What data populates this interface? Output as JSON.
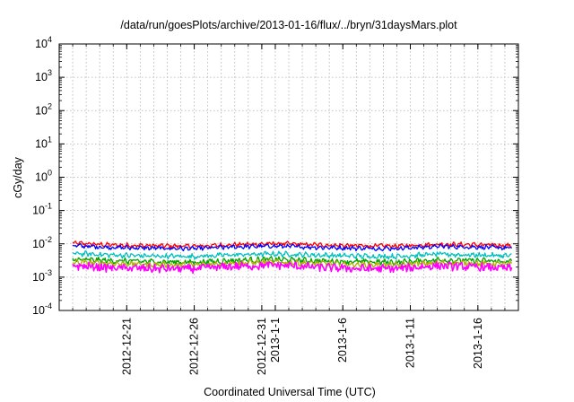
{
  "chart_data": {
    "type": "line",
    "title": "/data/run/goesPlots/archive/2013-01-16/flux/../bryn/31daysMars.plot",
    "xlabel": "Coordinated Universal Time (UTC)",
    "ylabel": "cGy/day",
    "yscale": "log",
    "ylim": [
      0.0001,
      10000
    ],
    "xlim": [
      "2012-12-16",
      "2013-01-19"
    ],
    "grid": true,
    "y_ticks": [
      {
        "base": "10",
        "exp": "-4",
        "value": 0.0001
      },
      {
        "base": "10",
        "exp": "-3",
        "value": 0.001
      },
      {
        "base": "10",
        "exp": "-2",
        "value": 0.01
      },
      {
        "base": "10",
        "exp": "-1",
        "value": 0.1
      },
      {
        "base": "10",
        "exp": "0",
        "value": 1
      },
      {
        "base": "10",
        "exp": "1",
        "value": 10
      },
      {
        "base": "10",
        "exp": "2",
        "value": 100
      },
      {
        "base": "10",
        "exp": "3",
        "value": 1000
      },
      {
        "base": "10",
        "exp": "4",
        "value": 10000
      }
    ],
    "x_ticks": [
      {
        "label": "2012-12-21",
        "date": "2012-12-21"
      },
      {
        "label": "2012-12-26",
        "date": "2012-12-26"
      },
      {
        "label": "2012-12-31",
        "date": "2012-12-31"
      },
      {
        "label": "2013-1-1",
        "date": "2013-01-01"
      },
      {
        "label": "2013-1-6",
        "date": "2013-01-06"
      },
      {
        "label": "2013-1-11",
        "date": "2013-01-11"
      },
      {
        "label": "2013-1-16",
        "date": "2013-01-16"
      }
    ],
    "series": [
      {
        "color": "#ff0000",
        "x": [
          "2012-12-17",
          "2012-12-20",
          "2012-12-23",
          "2012-12-26",
          "2012-12-29",
          "2013-01-01",
          "2013-01-04",
          "2013-01-07",
          "2013-01-10",
          "2013-01-13",
          "2013-01-16",
          "2013-01-19"
        ],
        "values": [
          0.0105,
          0.0092,
          0.0088,
          0.0085,
          0.0095,
          0.0102,
          0.0094,
          0.0088,
          0.0086,
          0.0098,
          0.0094,
          0.0088
        ]
      },
      {
        "color": "#0000ff",
        "x": [
          "2012-12-17",
          "2012-12-20",
          "2012-12-23",
          "2012-12-26",
          "2012-12-29",
          "2013-01-01",
          "2013-01-04",
          "2013-01-07",
          "2013-01-10",
          "2013-01-13",
          "2013-01-16",
          "2013-01-19"
        ],
        "values": [
          0.0088,
          0.0078,
          0.0074,
          0.0072,
          0.0081,
          0.0086,
          0.0079,
          0.0074,
          0.0073,
          0.0084,
          0.008,
          0.0074
        ]
      },
      {
        "color": "#00bfbf",
        "x": [
          "2012-12-17",
          "2012-12-20",
          "2012-12-23",
          "2012-12-26",
          "2012-12-29",
          "2013-01-01",
          "2013-01-04",
          "2013-01-07",
          "2013-01-10",
          "2013-01-13",
          "2013-01-16",
          "2013-01-19"
        ],
        "values": [
          0.0052,
          0.0046,
          0.0043,
          0.0042,
          0.0047,
          0.005,
          0.0046,
          0.0043,
          0.0042,
          0.0049,
          0.0046,
          0.0043
        ]
      },
      {
        "color": "#00a000",
        "x": [
          "2012-12-17",
          "2012-12-20",
          "2012-12-23",
          "2012-12-26",
          "2012-12-29",
          "2013-01-01",
          "2013-01-04",
          "2013-01-07",
          "2013-01-10",
          "2013-01-13",
          "2013-01-16",
          "2013-01-19"
        ],
        "values": [
          0.0034,
          0.0031,
          0.0029,
          0.0028,
          0.0032,
          0.0034,
          0.0031,
          0.0029,
          0.0028,
          0.0033,
          0.0031,
          0.0029
        ]
      },
      {
        "color": "#b0b000",
        "x": [
          "2012-12-17",
          "2012-12-20",
          "2012-12-23",
          "2012-12-26",
          "2012-12-29",
          "2013-01-01",
          "2013-01-04",
          "2013-01-07",
          "2013-01-10",
          "2013-01-13",
          "2013-01-16",
          "2013-01-19"
        ],
        "values": [
          0.0028,
          0.0026,
          0.0024,
          0.0023,
          0.0027,
          0.0028,
          0.0026,
          0.0024,
          0.0023,
          0.0027,
          0.0026,
          0.0024
        ]
      },
      {
        "color": "#ff00ff",
        "x": [
          "2012-12-17",
          "2012-12-20",
          "2012-12-23",
          "2012-12-26",
          "2012-12-29",
          "2013-01-01",
          "2013-01-04",
          "2013-01-07",
          "2013-01-10",
          "2013-01-13",
          "2013-01-16",
          "2013-01-19"
        ],
        "values": [
          0.0022,
          0.0019,
          0.0018,
          0.0018,
          0.0021,
          0.0023,
          0.002,
          0.0018,
          0.0018,
          0.0022,
          0.002,
          0.0018
        ]
      }
    ]
  }
}
